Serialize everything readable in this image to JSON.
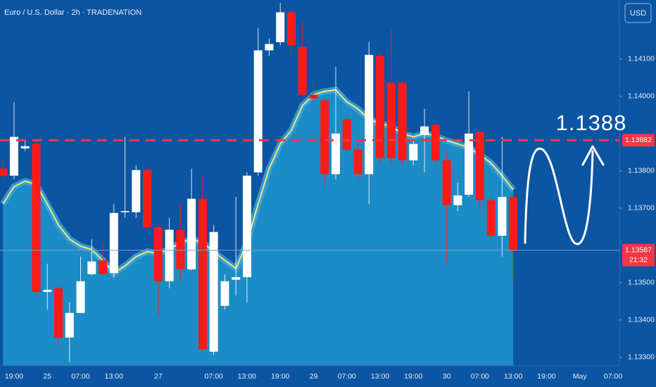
{
  "chart_data": {
    "type": "candlestick",
    "title": "Euro / U.S. Dollar · 2h · TRADENATION",
    "currency": "USD",
    "categories": [
      null,
      "19:00",
      null,
      null,
      "25",
      null,
      null,
      "07:00",
      null,
      null,
      "13:00",
      null,
      null,
      null,
      "27",
      null,
      null,
      null,
      null,
      "07:00",
      null,
      null,
      "13:00",
      null,
      null,
      "19:00",
      null,
      null,
      "29",
      null,
      null,
      "07:00",
      null,
      null,
      "13:00",
      null,
      null,
      "19:00",
      null,
      null,
      "30",
      null,
      null,
      "07:00",
      null,
      null,
      "13:00",
      null,
      null,
      "19:00",
      null,
      null,
      "May",
      null,
      null,
      "07:00"
    ],
    "open": [
      1.13806,
      1.13787,
      1.1386,
      1.13872,
      1.13475,
      1.13485,
      1.13353,
      1.13419,
      1.13523,
      1.1356,
      1.13526,
      1.13689,
      1.13689,
      1.13802,
      1.13649,
      1.13504,
      1.13642,
      1.13536,
      1.13725,
      1.13315,
      1.13438,
      1.13508,
      1.13515,
      1.13796,
      1.14123,
      1.14145,
      1.14225,
      1.14132,
      1.14004,
      1.13989,
      1.13791,
      1.13938,
      1.13857,
      1.13791,
      1.14108,
      1.14036,
      1.14036,
      1.13828,
      1.13896,
      1.13923,
      1.13828,
      1.13708,
      1.13736,
      1.13904,
      1.13721,
      1.13626,
      1.1373,
      null,
      null,
      null,
      null,
      null,
      null,
      null,
      null,
      null
    ],
    "high": [
      1.13825,
      1.13985,
      1.13881,
      1.13881,
      1.13551,
      1.13494,
      1.13447,
      1.1357,
      1.13617,
      1.13608,
      1.13711,
      1.13891,
      1.13815,
      1.13806,
      1.13655,
      1.13674,
      1.13711,
      1.13806,
      1.13787,
      1.13655,
      1.13523,
      1.1373,
      1.13796,
      1.14183,
      1.14155,
      1.1425,
      1.1423,
      1.14202,
      1.1404,
      1.13994,
      1.14079,
      1.13947,
      1.13881,
      1.14145,
      1.14117,
      1.14183,
      1.14042,
      1.13881,
      1.13966,
      1.13928,
      1.13853,
      1.13768,
      1.14013,
      1.13909,
      1.1373,
      1.13891,
      1.1374,
      null,
      null,
      null,
      null,
      null,
      null,
      null,
      null,
      null
    ],
    "low": [
      1.13777,
      1.13777,
      1.13853,
      1.13466,
      1.13428,
      1.13334,
      1.13287,
      1.13419,
      1.13519,
      1.13523,
      1.13513,
      1.13674,
      1.13674,
      1.13636,
      1.13409,
      1.13485,
      1.13504,
      1.13532,
      1.13315,
      1.13306,
      1.13428,
      1.13466,
      1.13447,
      1.13787,
      1.14108,
      1.14136,
      1.14108,
      1.13994,
      1.13985,
      1.13758,
      1.13777,
      1.13853,
      1.13777,
      1.13711,
      1.13815,
      1.13815,
      1.13815,
      1.13815,
      1.13796,
      1.13815,
      1.13551,
      1.13692,
      1.1373,
      1.13692,
      1.13617,
      1.1357,
      1.13504,
      null,
      null,
      null,
      null,
      null,
      null,
      null,
      null,
      null
    ],
    "close": [
      1.13787,
      1.13891,
      1.13866,
      1.13475,
      1.13481,
      1.13353,
      1.13419,
      1.13504,
      1.13557,
      1.13523,
      1.13687,
      1.13692,
      1.13802,
      1.13649,
      1.13504,
      1.13642,
      1.13536,
      1.13725,
      1.13321,
      1.13636,
      1.13504,
      1.13515,
      1.13787,
      1.14123,
      1.1414,
      1.14225,
      1.14136,
      1.14004,
      1.13994,
      1.13791,
      1.139,
      1.13857,
      1.13791,
      1.14111,
      1.13834,
      1.13834,
      1.13828,
      1.13872,
      1.13919,
      1.13828,
      1.13708,
      1.13734,
      1.139,
      1.13721,
      1.13626,
      1.1373,
      1.13587,
      null,
      null,
      null,
      null,
      null,
      null,
      null,
      null,
      null
    ],
    "up_color": "#ffffff",
    "down_color": "#ff1a1a",
    "ma": {
      "color": "#f2e27a",
      "area_color": "#1b8cc6",
      "values": [
        1.13711,
        1.13758,
        1.13772,
        1.13764,
        1.13711,
        1.13655,
        1.13617,
        1.13598,
        1.13589,
        1.1356,
        1.13526,
        1.13545,
        1.1357,
        1.13583,
        1.13579,
        1.13589,
        1.13608,
        1.13617,
        1.13608,
        1.13583,
        1.1356,
        1.13538,
        1.13608,
        1.13711,
        1.13806,
        1.13872,
        1.13909,
        1.13975,
        1.14004,
        1.14013,
        1.14017,
        1.13985,
        1.13966,
        1.13938,
        1.13928,
        1.13919,
        1.139,
        1.13891,
        1.139,
        1.13894,
        1.13881,
        1.13872,
        1.13862,
        1.13843,
        1.13821,
        1.13787,
        1.13749,
        null,
        null,
        null,
        null,
        null,
        null,
        null,
        null,
        null
      ]
    },
    "ylim": [
      1.13277,
      1.14258
    ],
    "yticks": [
      {
        "value": 1.133,
        "label": "1.13300"
      },
      {
        "value": 1.134,
        "label": "1.13400"
      },
      {
        "value": 1.135,
        "label": "1.13500"
      },
      {
        "value": 1.137,
        "label": "1.13700"
      },
      {
        "value": 1.138,
        "label": "1.13800"
      },
      {
        "value": 1.14,
        "label": "1.14000"
      },
      {
        "value": 1.141,
        "label": "1.14100"
      }
    ],
    "grid": false,
    "price_lines": [
      {
        "value": 1.13882,
        "line_color": "#f23645",
        "label_color": "#f23645",
        "style": "dashed"
      },
      {
        "value": 1.13587,
        "line_color": "#7f9cc0",
        "label_color": "#f23645",
        "style": "solid",
        "countdown": "21:32"
      }
    ],
    "annotation": {
      "text": "1.1388"
    }
  }
}
